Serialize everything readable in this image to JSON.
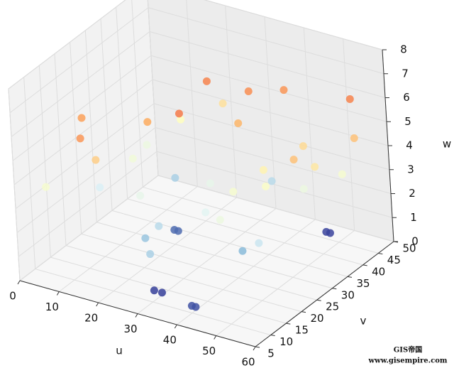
{
  "chart_data": {
    "type": "scatter3d",
    "xlabel": "u",
    "ylabel": "v",
    "zlabel": "w",
    "xlim": [
      0,
      60
    ],
    "ylim": [
      5,
      50
    ],
    "zlim": [
      0,
      8
    ],
    "xticks": [
      0,
      10,
      20,
      30,
      40,
      50,
      60
    ],
    "yticks": [
      5,
      10,
      15,
      20,
      25,
      30,
      35,
      40,
      45,
      50
    ],
    "zticks": [
      0,
      1,
      2,
      3,
      4,
      5,
      6,
      7,
      8
    ],
    "grid": true,
    "colormap": [
      "#313695",
      "#74add1",
      "#e0f3f8",
      "#ffffbf",
      "#fdae61",
      "#f46d43",
      "#a50026"
    ],
    "x": [
      28,
      30,
      46,
      47,
      40,
      41,
      20,
      21,
      8,
      10,
      12,
      4,
      15,
      22,
      30,
      35,
      40,
      48,
      55,
      52,
      58,
      50,
      26,
      14,
      18,
      24,
      33,
      38,
      44,
      50,
      56,
      6,
      12,
      28,
      34,
      42,
      46,
      54,
      16,
      24,
      36,
      44,
      30,
      20
    ],
    "y": [
      13,
      13,
      46,
      46,
      10,
      10,
      30,
      30,
      22,
      35,
      28,
      10,
      40,
      45,
      30,
      22,
      25,
      38,
      45,
      30,
      42,
      20,
      18,
      14,
      26,
      38,
      40,
      45,
      30,
      35,
      40,
      20,
      12,
      24,
      35,
      18,
      28,
      34,
      36,
      16,
      42,
      22,
      10,
      20
    ],
    "z": [
      0.1,
      0.1,
      0.15,
      0.15,
      0.3,
      0.3,
      0.6,
      0.6,
      2.6,
      3.2,
      3.4,
      3.6,
      4.0,
      4.5,
      3.0,
      2.8,
      3.6,
      4.6,
      6.2,
      5.0,
      5.0,
      2.4,
      2.2,
      4.8,
      5.4,
      6.2,
      6.0,
      5.8,
      4.2,
      3.2,
      3.6,
      5.6,
      5.8,
      6.4,
      5.2,
      3.2,
      3.8,
      4.4,
      2.0,
      1.8,
      2.2,
      1.6,
      2.0,
      3.0
    ],
    "watermark": [
      "GIS帝国",
      "www.gisempire.com"
    ]
  }
}
